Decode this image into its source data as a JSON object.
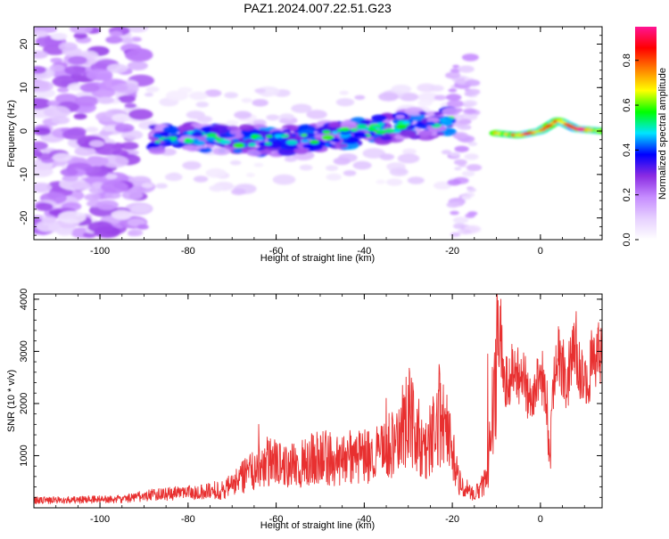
{
  "figure": {
    "title": "PAZ1.2024.007.22.51.G23"
  },
  "colormap": {
    "stops": [
      "#ffffff",
      "#e6d0ff",
      "#c68cff",
      "#8a2be2",
      "#0000ff",
      "#00e5ff",
      "#00ff00",
      "#ffff00",
      "#ff8000",
      "#ff0000",
      "#ff1493"
    ],
    "label": "Normalized spectral amplitude"
  },
  "chart_data": [
    {
      "type": "heatmap",
      "title": "",
      "xlabel": "Height of straight line (km)",
      "ylabel": "Frequency (Hz)",
      "xlim": [
        -115,
        14
      ],
      "ylim": [
        -25,
        24
      ],
      "x_ticks": [
        -100,
        -80,
        -60,
        -40,
        -20,
        0
      ],
      "y_ticks": [
        -20,
        -10,
        0,
        10,
        20
      ],
      "colorbar": {
        "label": "Normalized spectral amplitude",
        "range": [
          0,
          0.95
        ],
        "ticks": [
          0.0,
          0.2,
          0.4,
          0.6,
          0.8
        ]
      },
      "features": [
        {
          "x": [
            -115,
            -90
          ],
          "y": [
            -24,
            24
          ],
          "amplitude": 0.15,
          "description": "scattered"
        },
        {
          "x": [
            -88,
            -20
          ],
          "y": [
            -6,
            4
          ],
          "amplitude": 0.45
        },
        {
          "x": [
            -20,
            -15
          ],
          "y": [
            -24,
            18
          ],
          "amplitude": 0.2
        },
        {
          "x": [
            -10,
            14
          ],
          "y": [
            -1,
            3
          ],
          "amplitude": 0.9
        }
      ],
      "ridge": [
        {
          "x": -88,
          "y": -2
        },
        {
          "x": -80,
          "y": -1.5
        },
        {
          "x": -70,
          "y": -2
        },
        {
          "x": -60,
          "y": -2.5
        },
        {
          "x": -50,
          "y": -1.5
        },
        {
          "x": -40,
          "y": 0
        },
        {
          "x": -30,
          "y": 1.5
        },
        {
          "x": -20,
          "y": 2
        },
        {
          "x": -10,
          "y": -0.5
        },
        {
          "x": -5,
          "y": -1
        },
        {
          "x": 0,
          "y": 0
        },
        {
          "x": 4,
          "y": 2.5
        },
        {
          "x": 8,
          "y": 0.5
        },
        {
          "x": 14,
          "y": 0
        }
      ]
    },
    {
      "type": "line",
      "title": "",
      "xlabel": "Height of straight line (km)",
      "ylabel": "SNR (10 * v/v)",
      "xlim": [
        -115,
        14
      ],
      "ylim": [
        0,
        4100
      ],
      "x_ticks": [
        -100,
        -80,
        -60,
        -40,
        -20,
        0
      ],
      "y_ticks": [
        1000,
        2000,
        3000,
        4000
      ],
      "color": "#e83030",
      "series": [
        {
          "x": [
            -115,
            -105,
            -95,
            -88,
            -82,
            -76,
            -70,
            -66,
            -62,
            -58,
            -54,
            -50,
            -46,
            -42,
            -38,
            -34,
            -30,
            -26,
            -23,
            -20,
            -18,
            -15,
            -12,
            -10,
            -9,
            -8,
            -6,
            -4,
            -2,
            0,
            2,
            4,
            6,
            8,
            10,
            12,
            14
          ],
          "y": [
            150,
            160,
            180,
            260,
            300,
            320,
            550,
            900,
            1200,
            1000,
            1100,
            1300,
            1150,
            1300,
            1250,
            1600,
            2300,
            1400,
            2300,
            1500,
            500,
            250,
            800,
            3800,
            3200,
            2400,
            2700,
            2600,
            2000,
            2800,
            1800,
            3000,
            2500,
            3200,
            2300,
            3000,
            3200
          ],
          "peaks": [
            {
              "x": -64,
              "y": 1600
            },
            {
              "x": -35,
              "y": 2100
            },
            {
              "x": -30,
              "y": 2350
            },
            {
              "x": -23,
              "y": 2750
            },
            {
              "x": -12,
              "y": 2950
            },
            {
              "x": -9,
              "y": 4000
            },
            {
              "x": 8,
              "y": 3500
            },
            {
              "x": 13,
              "y": 3450
            }
          ]
        }
      ]
    }
  ]
}
